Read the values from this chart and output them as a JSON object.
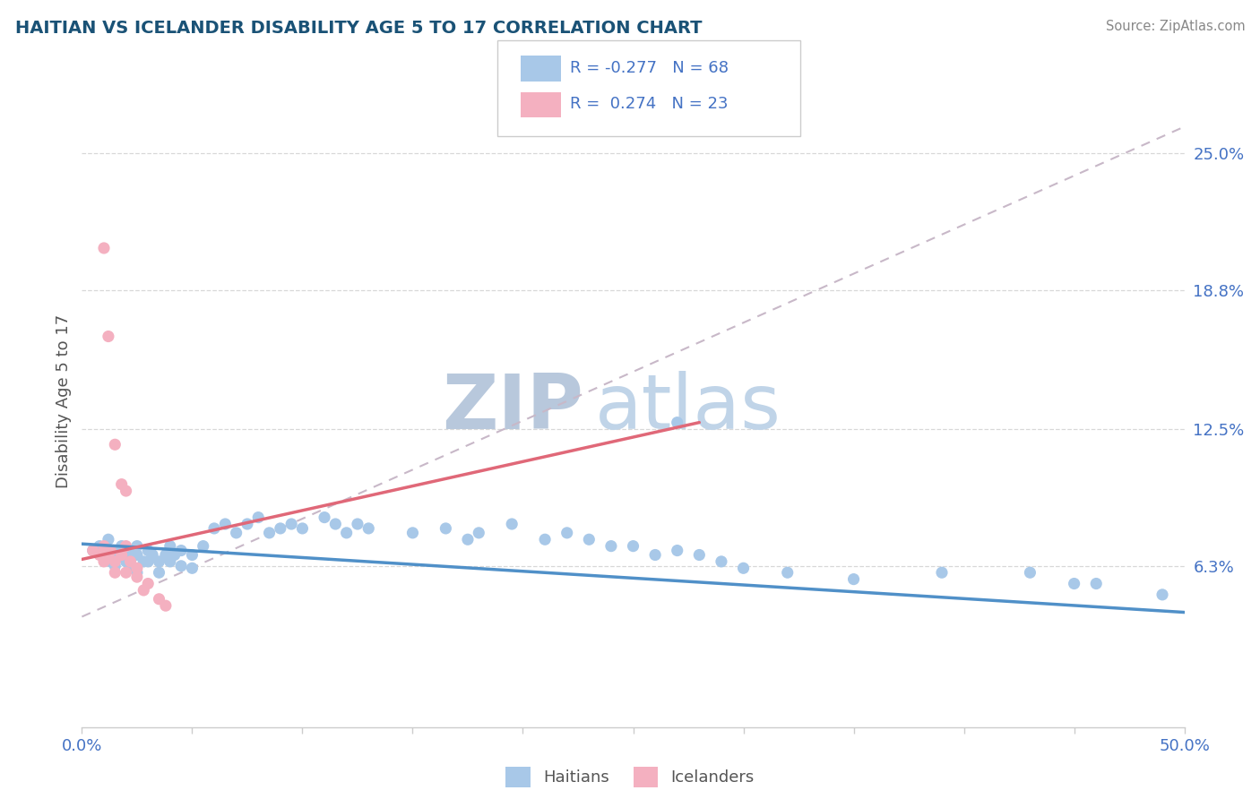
{
  "title": "HAITIAN VS ICELANDER DISABILITY AGE 5 TO 17 CORRELATION CHART",
  "source": "Source: ZipAtlas.com",
  "ylabel": "Disability Age 5 to 17",
  "xlim": [
    0.0,
    0.5
  ],
  "ylim": [
    -0.01,
    0.285
  ],
  "ytick_labels_right": [
    "6.3%",
    "12.5%",
    "18.8%",
    "25.0%"
  ],
  "ytick_vals_right": [
    0.063,
    0.125,
    0.188,
    0.25
  ],
  "legend_r_blue": "-0.277",
  "legend_n_blue": "68",
  "legend_r_pink": "0.274",
  "legend_n_pink": "23",
  "blue_color": "#a8c8e8",
  "pink_color": "#f4b0c0",
  "trend_blue_color": "#5090c8",
  "trend_pink_color": "#e06878",
  "trend_dashed_color": "#c8b8c8",
  "title_color": "#1a5276",
  "watermark_color": "#c8d8ec",
  "blue_scatter": [
    [
      0.005,
      0.07
    ],
    [
      0.008,
      0.072
    ],
    [
      0.01,
      0.068
    ],
    [
      0.012,
      0.075
    ],
    [
      0.013,
      0.065
    ],
    [
      0.015,
      0.07
    ],
    [
      0.015,
      0.063
    ],
    [
      0.017,
      0.068
    ],
    [
      0.018,
      0.072
    ],
    [
      0.02,
      0.065
    ],
    [
      0.02,
      0.07
    ],
    [
      0.022,
      0.068
    ],
    [
      0.022,
      0.063
    ],
    [
      0.025,
      0.072
    ],
    [
      0.025,
      0.068
    ],
    [
      0.025,
      0.06
    ],
    [
      0.028,
      0.065
    ],
    [
      0.03,
      0.07
    ],
    [
      0.03,
      0.065
    ],
    [
      0.032,
      0.068
    ],
    [
      0.035,
      0.065
    ],
    [
      0.035,
      0.06
    ],
    [
      0.038,
      0.068
    ],
    [
      0.04,
      0.072
    ],
    [
      0.04,
      0.065
    ],
    [
      0.042,
      0.068
    ],
    [
      0.045,
      0.07
    ],
    [
      0.045,
      0.063
    ],
    [
      0.05,
      0.068
    ],
    [
      0.05,
      0.062
    ],
    [
      0.055,
      0.072
    ],
    [
      0.06,
      0.08
    ],
    [
      0.065,
      0.082
    ],
    [
      0.07,
      0.078
    ],
    [
      0.075,
      0.082
    ],
    [
      0.08,
      0.085
    ],
    [
      0.085,
      0.078
    ],
    [
      0.09,
      0.08
    ],
    [
      0.095,
      0.082
    ],
    [
      0.1,
      0.08
    ],
    [
      0.11,
      0.085
    ],
    [
      0.115,
      0.082
    ],
    [
      0.12,
      0.078
    ],
    [
      0.125,
      0.082
    ],
    [
      0.13,
      0.08
    ],
    [
      0.15,
      0.078
    ],
    [
      0.165,
      0.08
    ],
    [
      0.175,
      0.075
    ],
    [
      0.18,
      0.078
    ],
    [
      0.195,
      0.082
    ],
    [
      0.21,
      0.075
    ],
    [
      0.22,
      0.078
    ],
    [
      0.23,
      0.075
    ],
    [
      0.24,
      0.072
    ],
    [
      0.25,
      0.072
    ],
    [
      0.26,
      0.068
    ],
    [
      0.27,
      0.07
    ],
    [
      0.28,
      0.068
    ],
    [
      0.29,
      0.065
    ],
    [
      0.3,
      0.062
    ],
    [
      0.27,
      0.128
    ],
    [
      0.32,
      0.06
    ],
    [
      0.35,
      0.057
    ],
    [
      0.39,
      0.06
    ],
    [
      0.43,
      0.06
    ],
    [
      0.45,
      0.055
    ],
    [
      0.46,
      0.055
    ],
    [
      0.49,
      0.05
    ]
  ],
  "pink_scatter": [
    [
      0.005,
      0.07
    ],
    [
      0.008,
      0.068
    ],
    [
      0.01,
      0.072
    ],
    [
      0.01,
      0.065
    ],
    [
      0.012,
      0.068
    ],
    [
      0.013,
      0.07
    ],
    [
      0.015,
      0.065
    ],
    [
      0.015,
      0.06
    ],
    [
      0.018,
      0.068
    ],
    [
      0.02,
      0.072
    ],
    [
      0.02,
      0.06
    ],
    [
      0.022,
      0.065
    ],
    [
      0.025,
      0.062
    ],
    [
      0.025,
      0.058
    ],
    [
      0.028,
      0.052
    ],
    [
      0.03,
      0.055
    ],
    [
      0.035,
      0.048
    ],
    [
      0.038,
      0.045
    ],
    [
      0.01,
      0.207
    ],
    [
      0.012,
      0.167
    ],
    [
      0.015,
      0.118
    ],
    [
      0.018,
      0.1
    ],
    [
      0.02,
      0.097
    ]
  ],
  "blue_trend_x": [
    0.0,
    0.5
  ],
  "blue_trend_y": [
    0.073,
    0.042
  ],
  "pink_trend_x": [
    0.0,
    0.28
  ],
  "pink_trend_y": [
    0.066,
    0.128
  ],
  "dashed_trend_x": [
    0.0,
    0.5
  ],
  "dashed_trend_y": [
    0.04,
    0.262
  ]
}
